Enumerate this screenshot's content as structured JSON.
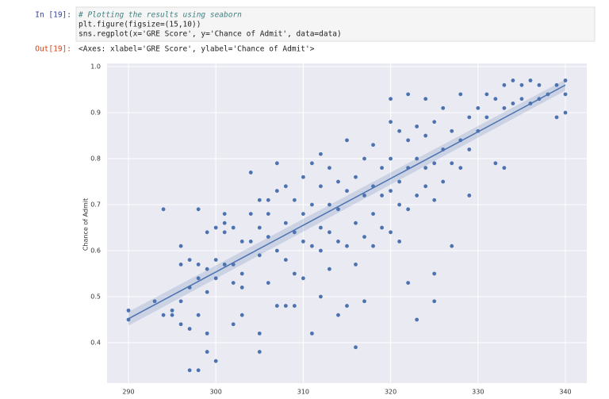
{
  "cells": [
    {
      "prompt": "In [19]:",
      "lines": [
        "# Plotting the results using seaborn",
        "plt.figure(figsize=(15,10))",
        "sns.regplot(x='GRE Score', y='Chance of Admit', data=data)"
      ],
      "out_prompt": "Out[19]:",
      "output": "<Axes: xlabel='GRE Score', ylabel='Chance of Admit'>"
    }
  ],
  "chart_data": {
    "type": "scatter",
    "ylabel": "Chance of Admit",
    "color": "#4c72b0",
    "grid": true,
    "xlim": [
      287.55,
      342.45
    ],
    "ylim": [
      0.312,
      1.007
    ],
    "xticks": [
      290,
      300,
      310,
      320,
      330,
      340
    ],
    "yticks": [
      0.4,
      0.5,
      0.6,
      0.7,
      0.8,
      0.9,
      {
        "value": 1.0,
        "label": "1.0"
      }
    ],
    "x": [
      290,
      290,
      293,
      294,
      294,
      295,
      295,
      296,
      296,
      296,
      296,
      297,
      297,
      297,
      297,
      298,
      298,
      298,
      298,
      298,
      299,
      299,
      299,
      299,
      299,
      300,
      300,
      300,
      300,
      301,
      301,
      301,
      301,
      302,
      302,
      302,
      302,
      303,
      303,
      303,
      303,
      304,
      304,
      304,
      305,
      305,
      305,
      305,
      305,
      306,
      306,
      306,
      306,
      307,
      307,
      307,
      307,
      308,
      308,
      308,
      308,
      309,
      309,
      309,
      309,
      310,
      310,
      310,
      310,
      311,
      311,
      311,
      311,
      312,
      312,
      312,
      312,
      312,
      313,
      313,
      313,
      313,
      314,
      314,
      314,
      314,
      315,
      315,
      315,
      315,
      316,
      316,
      316,
      316,
      317,
      317,
      317,
      317,
      318,
      318,
      318,
      318,
      319,
      319,
      319,
      320,
      320,
      320,
      320,
      320,
      321,
      321,
      321,
      321,
      322,
      322,
      322,
      322,
      322,
      323,
      323,
      323,
      323,
      324,
      324,
      324,
      324,
      325,
      325,
      325,
      325,
      325,
      326,
      326,
      326,
      327,
      327,
      327,
      328,
      328,
      328,
      329,
      329,
      329,
      330,
      330,
      331,
      331,
      332,
      332,
      333,
      333,
      333,
      334,
      334,
      335,
      335,
      336,
      336,
      337,
      337,
      338,
      339,
      339,
      340,
      340,
      340
    ],
    "values": [
      0.45,
      0.47,
      0.49,
      0.46,
      0.69,
      0.46,
      0.47,
      0.44,
      0.49,
      0.61,
      0.57,
      0.43,
      0.34,
      0.52,
      0.58,
      0.34,
      0.46,
      0.54,
      0.69,
      0.57,
      0.42,
      0.38,
      0.51,
      0.56,
      0.64,
      0.36,
      0.58,
      0.65,
      0.54,
      0.57,
      0.64,
      0.68,
      0.66,
      0.44,
      0.53,
      0.65,
      0.57,
      0.46,
      0.55,
      0.62,
      0.52,
      0.62,
      0.68,
      0.77,
      0.38,
      0.42,
      0.59,
      0.65,
      0.71,
      0.53,
      0.63,
      0.68,
      0.71,
      0.48,
      0.6,
      0.73,
      0.79,
      0.48,
      0.58,
      0.66,
      0.74,
      0.48,
      0.55,
      0.64,
      0.71,
      0.54,
      0.62,
      0.68,
      0.76,
      0.42,
      0.61,
      0.7,
      0.79,
      0.5,
      0.6,
      0.65,
      0.74,
      0.81,
      0.56,
      0.64,
      0.7,
      0.78,
      0.46,
      0.62,
      0.69,
      0.75,
      0.48,
      0.61,
      0.73,
      0.84,
      0.39,
      0.57,
      0.66,
      0.76,
      0.49,
      0.63,
      0.72,
      0.8,
      0.61,
      0.68,
      0.74,
      0.83,
      0.65,
      0.72,
      0.78,
      0.64,
      0.73,
      0.8,
      0.88,
      0.93,
      0.62,
      0.7,
      0.75,
      0.86,
      0.53,
      0.69,
      0.78,
      0.84,
      0.94,
      0.45,
      0.72,
      0.8,
      0.87,
      0.74,
      0.78,
      0.85,
      0.93,
      0.49,
      0.55,
      0.71,
      0.79,
      0.88,
      0.75,
      0.82,
      0.91,
      0.61,
      0.79,
      0.86,
      0.78,
      0.84,
      0.94,
      0.72,
      0.82,
      0.89,
      0.86,
      0.91,
      0.89,
      0.94,
      0.79,
      0.93,
      0.78,
      0.91,
      0.96,
      0.92,
      0.97,
      0.93,
      0.96,
      0.92,
      0.97,
      0.93,
      0.96,
      0.94,
      0.89,
      0.96,
      0.9,
      0.94,
      0.97
    ],
    "regression": {
      "x": [
        290,
        340
      ],
      "y": [
        0.452,
        0.96
      ],
      "ci_low": [
        0.437,
        0.948
      ],
      "ci_high": [
        0.467,
        0.972
      ]
    }
  }
}
